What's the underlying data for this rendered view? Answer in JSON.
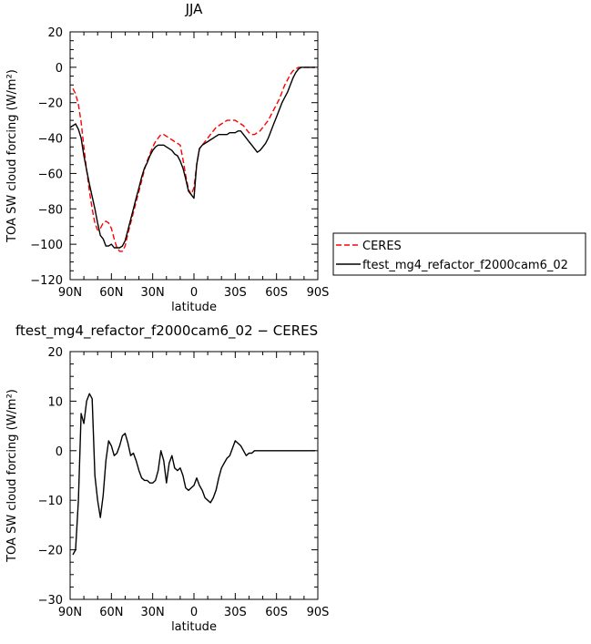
{
  "chart_data": [
    {
      "type": "line",
      "title": "JJA",
      "xlabel": "latitude",
      "ylabel": "TOA SW cloud forcing (W/m²)",
      "xlim": [
        90,
        -90
      ],
      "ylim": [
        -120,
        20
      ],
      "x_ticks": [
        90,
        60,
        30,
        0,
        -30,
        -60,
        -90
      ],
      "x_tick_labels": [
        "90N",
        "60N",
        "30N",
        "0",
        "30S",
        "60S",
        "90S"
      ],
      "y_ticks": [
        20,
        0,
        -20,
        -40,
        -60,
        -80,
        -100,
        -120
      ],
      "y_tick_labels": [
        "20",
        "0",
        "−20",
        "−40",
        "−60",
        "−80",
        "−100",
        "−120"
      ],
      "legend": "outside-right",
      "series": [
        {
          "name": "CERES",
          "color": "#ff0000",
          "dash": "dashed",
          "x": [
            88,
            86,
            84,
            82,
            80,
            78,
            76,
            74,
            72,
            70,
            68,
            66,
            64,
            62,
            60,
            58,
            56,
            54,
            52,
            50,
            48,
            46,
            44,
            42,
            40,
            38,
            36,
            34,
            32,
            30,
            28,
            26,
            24,
            22,
            20,
            18,
            16,
            14,
            12,
            10,
            8,
            6,
            4,
            2,
            0,
            -2,
            -4,
            -6,
            -8,
            -10,
            -12,
            -14,
            -16,
            -18,
            -20,
            -22,
            -24,
            -26,
            -28,
            -30,
            -32,
            -34,
            -36,
            -38,
            -40,
            -42,
            -44,
            -46,
            -48,
            -50,
            -52,
            -54,
            -56,
            -58,
            -60,
            -62,
            -64,
            -66,
            -68,
            -70,
            -72,
            -74,
            -76,
            -78,
            -80,
            -82,
            -84,
            -86,
            -88
          ],
          "values": [
            -12,
            -15,
            -21,
            -31,
            -45,
            -58,
            -70,
            -80,
            -88,
            -92,
            -91,
            -88,
            -87,
            -88,
            -91,
            -97,
            -102,
            -104,
            -104,
            -101,
            -94,
            -88,
            -82,
            -76,
            -70,
            -64,
            -58,
            -53,
            -49,
            -45,
            -42,
            -40,
            -38,
            -38,
            -39,
            -40,
            -41,
            -42,
            -43,
            -44,
            -52,
            -61,
            -69,
            -72,
            -68,
            -55,
            -46,
            -44,
            -42,
            -40,
            -38,
            -36,
            -34,
            -33,
            -32,
            -31,
            -30,
            -30,
            -30,
            -30,
            -31,
            -32,
            -33,
            -35,
            -37,
            -38,
            -38,
            -37,
            -36,
            -34,
            -32,
            -30,
            -27,
            -24,
            -21,
            -18,
            -14,
            -10,
            -7,
            -4,
            -2,
            -1,
            0,
            0,
            0,
            0,
            0,
            0,
            0
          ]
        },
        {
          "name": "ftest_mg4_refactor_f2000cam6_02",
          "color": "#000000",
          "dash": "solid",
          "x": [
            90,
            88,
            86,
            84,
            82,
            80,
            78,
            76,
            74,
            72,
            70,
            68,
            66,
            64,
            62,
            60,
            58,
            56,
            54,
            52,
            50,
            48,
            46,
            44,
            42,
            40,
            38,
            36,
            34,
            32,
            30,
            28,
            26,
            24,
            22,
            20,
            18,
            16,
            14,
            12,
            10,
            8,
            6,
            4,
            2,
            0,
            -2,
            -4,
            -6,
            -8,
            -10,
            -12,
            -14,
            -16,
            -18,
            -20,
            -22,
            -24,
            -26,
            -28,
            -30,
            -32,
            -34,
            -36,
            -38,
            -40,
            -42,
            -44,
            -46,
            -48,
            -50,
            -52,
            -54,
            -56,
            -58,
            -60,
            -62,
            -64,
            -66,
            -68,
            -70,
            -72,
            -74,
            -76,
            -78,
            -80,
            -82,
            -84,
            -86,
            -88
          ],
          "values": [
            -34,
            -33,
            -32,
            -35,
            -40,
            -50,
            -58,
            -66,
            -73,
            -80,
            -88,
            -95,
            -97,
            -101,
            -101,
            -100,
            -102,
            -102,
            -102,
            -101,
            -98,
            -92,
            -86,
            -80,
            -74,
            -68,
            -62,
            -57,
            -54,
            -50,
            -47,
            -45,
            -44,
            -44,
            -44,
            -45,
            -46,
            -47,
            -49,
            -50,
            -53,
            -57,
            -63,
            -70,
            -72,
            -74,
            -55,
            -46,
            -44,
            -43,
            -42,
            -41,
            -40,
            -39,
            -38,
            -38,
            -38,
            -38,
            -37,
            -37,
            -37,
            -36,
            -36,
            -38,
            -40,
            -42,
            -44,
            -46,
            -48,
            -47,
            -45,
            -43,
            -40,
            -36,
            -32,
            -28,
            -24,
            -20,
            -17,
            -14,
            -10,
            -6,
            -3,
            -1,
            0,
            0,
            0,
            0,
            0,
            0
          ]
        }
      ]
    },
    {
      "type": "line",
      "title": "ftest_mg4_refactor_f2000cam6_02 − CERES",
      "xlabel": "latitude",
      "ylabel": "TOA SW cloud forcing (W/m²)",
      "xlim": [
        90,
        -90
      ],
      "ylim": [
        -30,
        20
      ],
      "x_ticks": [
        90,
        60,
        30,
        0,
        -30,
        -60,
        -90
      ],
      "x_tick_labels": [
        "90N",
        "60N",
        "30N",
        "0",
        "30S",
        "60S",
        "90S"
      ],
      "y_ticks": [
        20,
        10,
        0,
        -10,
        -20,
        -30
      ],
      "y_tick_labels": [
        "20",
        "10",
        "0",
        "−10",
        "−20",
        "−30"
      ],
      "series": [
        {
          "color": "#000000",
          "dash": "solid",
          "x": [
            88,
            86,
            84,
            82,
            80,
            78,
            76,
            74,
            72,
            70,
            68,
            66,
            64,
            62,
            60,
            58,
            56,
            54,
            52,
            50,
            48,
            46,
            44,
            42,
            40,
            38,
            36,
            34,
            32,
            30,
            28,
            26,
            24,
            22,
            20,
            18,
            16,
            14,
            12,
            10,
            8,
            6,
            4,
            2,
            0,
            -2,
            -4,
            -6,
            -8,
            -10,
            -12,
            -14,
            -16,
            -18,
            -20,
            -22,
            -24,
            -26,
            -28,
            -30,
            -32,
            -34,
            -36,
            -38,
            -40,
            -42,
            -44,
            -46,
            -48,
            -50,
            -52,
            -54,
            -56,
            -58,
            -60,
            -62,
            -64,
            -66,
            -68,
            -70,
            -72,
            -74,
            -76,
            -78,
            -80,
            -82,
            -84,
            -86,
            -88
          ],
          "values": [
            -21,
            -20,
            -10,
            7.5,
            5.5,
            10,
            11.5,
            10.5,
            -5,
            -10,
            -13.5,
            -9,
            -2,
            2,
            1,
            -1,
            -0.5,
            1,
            3,
            3.5,
            1.5,
            -1,
            -0.5,
            -2,
            -4,
            -5.5,
            -6,
            -6,
            -6.5,
            -6.5,
            -6,
            -4,
            0,
            -2,
            -6.5,
            -2.5,
            -1,
            -3.5,
            -4,
            -3.5,
            -5,
            -7.5,
            -8,
            -7.5,
            -7,
            -5.5,
            -7,
            -8,
            -9.5,
            -10,
            -10.5,
            -9.5,
            -8,
            -5.5,
            -3.5,
            -2.5,
            -1.5,
            -1,
            0.5,
            2,
            1.5,
            1,
            0,
            -1,
            -0.5,
            -0.5,
            0,
            0,
            0,
            0,
            0,
            0,
            0,
            0,
            0,
            0,
            0,
            0,
            0,
            0,
            0,
            0,
            0,
            0,
            0,
            0,
            0,
            0,
            0
          ]
        }
      ]
    }
  ]
}
